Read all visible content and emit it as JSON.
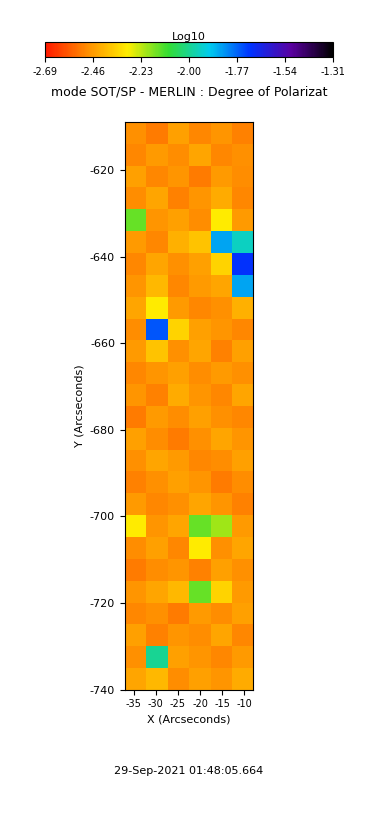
{
  "chart_data": {
    "type": "heatmap",
    "title": "mode SOT/SP - MERLIN : Degree of Polarizat",
    "x_label": "X (Arcseconds)",
    "y_label": "Y (Arcseconds)",
    "footer": "29-Sep-2021 01:48:05.664",
    "xlim": [
      -37,
      -8
    ],
    "ylim": [
      -740,
      -609
    ],
    "xticks": [
      -35,
      -30,
      -25,
      -20,
      -15,
      -10
    ],
    "yticks": [
      -740,
      -720,
      -700,
      -680,
      -660,
      -640,
      -620
    ],
    "colorbar_label": "Log10",
    "colorbar_range": [
      -2.69,
      -1.31
    ],
    "colorbar_ticks": [
      -2.69,
      -2.46,
      -2.23,
      {
        "value": -2.0,
        "label": "-2.00"
      },
      -1.77,
      -1.54,
      -1.31
    ],
    "cells": [
      [
        -2.48,
        -2.52,
        -2.45,
        -2.5,
        -2.47,
        -2.51
      ],
      [
        -2.5,
        -2.46,
        -2.49,
        -2.44,
        -2.5,
        -2.48
      ],
      [
        -2.45,
        -2.5,
        -2.47,
        -2.52,
        -2.46,
        -2.49
      ],
      [
        -2.49,
        -2.44,
        -2.51,
        -2.47,
        -2.43,
        -2.5
      ],
      [
        -2.15,
        -2.47,
        -2.45,
        -2.49,
        -2.3,
        -2.46
      ],
      [
        -2.46,
        -2.5,
        -2.42,
        -2.38,
        -1.85,
        -1.95
      ],
      [
        -2.5,
        -2.44,
        -2.48,
        -2.45,
        -2.35,
        -1.7
      ],
      [
        -2.47,
        -2.4,
        -2.5,
        -2.46,
        -2.44,
        -1.85
      ],
      [
        -2.44,
        -2.3,
        -2.46,
        -2.5,
        -2.48,
        -2.42
      ],
      [
        -2.49,
        -1.75,
        -2.35,
        -2.45,
        -2.47,
        -2.5
      ],
      [
        -2.46,
        -2.38,
        -2.48,
        -2.44,
        -2.51,
        -2.45
      ],
      [
        -2.5,
        -2.47,
        -2.45,
        -2.49,
        -2.46,
        -2.48
      ],
      [
        -2.47,
        -2.51,
        -2.43,
        -2.47,
        -2.5,
        -2.44
      ],
      [
        -2.52,
        -2.46,
        -2.49,
        -2.45,
        -2.48,
        -2.5
      ],
      [
        -2.45,
        -2.49,
        -2.52,
        -2.48,
        -2.44,
        -2.47
      ],
      [
        -2.48,
        -2.44,
        -2.46,
        -2.5,
        -2.49,
        -2.45
      ],
      [
        -2.51,
        -2.48,
        -2.45,
        -2.47,
        -2.52,
        -2.49
      ],
      [
        -2.46,
        -2.5,
        -2.48,
        -2.44,
        -2.47,
        -2.51
      ],
      [
        -2.3,
        -2.47,
        -2.44,
        -2.15,
        -2.2,
        -2.46
      ],
      [
        -2.49,
        -2.45,
        -2.5,
        -2.3,
        -2.48,
        -2.44
      ],
      [
        -2.52,
        -2.49,
        -2.47,
        -2.51,
        -2.45,
        -2.48
      ],
      [
        -2.47,
        -2.44,
        -2.4,
        -2.15,
        -2.35,
        -2.46
      ],
      [
        -2.5,
        -2.48,
        -2.52,
        -2.46,
        -2.49,
        -2.45
      ],
      [
        -2.45,
        -2.51,
        -2.47,
        -2.49,
        -2.44,
        -2.5
      ],
      [
        -2.48,
        -2.0,
        -2.45,
        -2.47,
        -2.5,
        -2.46
      ],
      [
        -2.44,
        -2.4,
        -2.49,
        -2.45,
        -2.47,
        -2.43
      ]
    ]
  }
}
